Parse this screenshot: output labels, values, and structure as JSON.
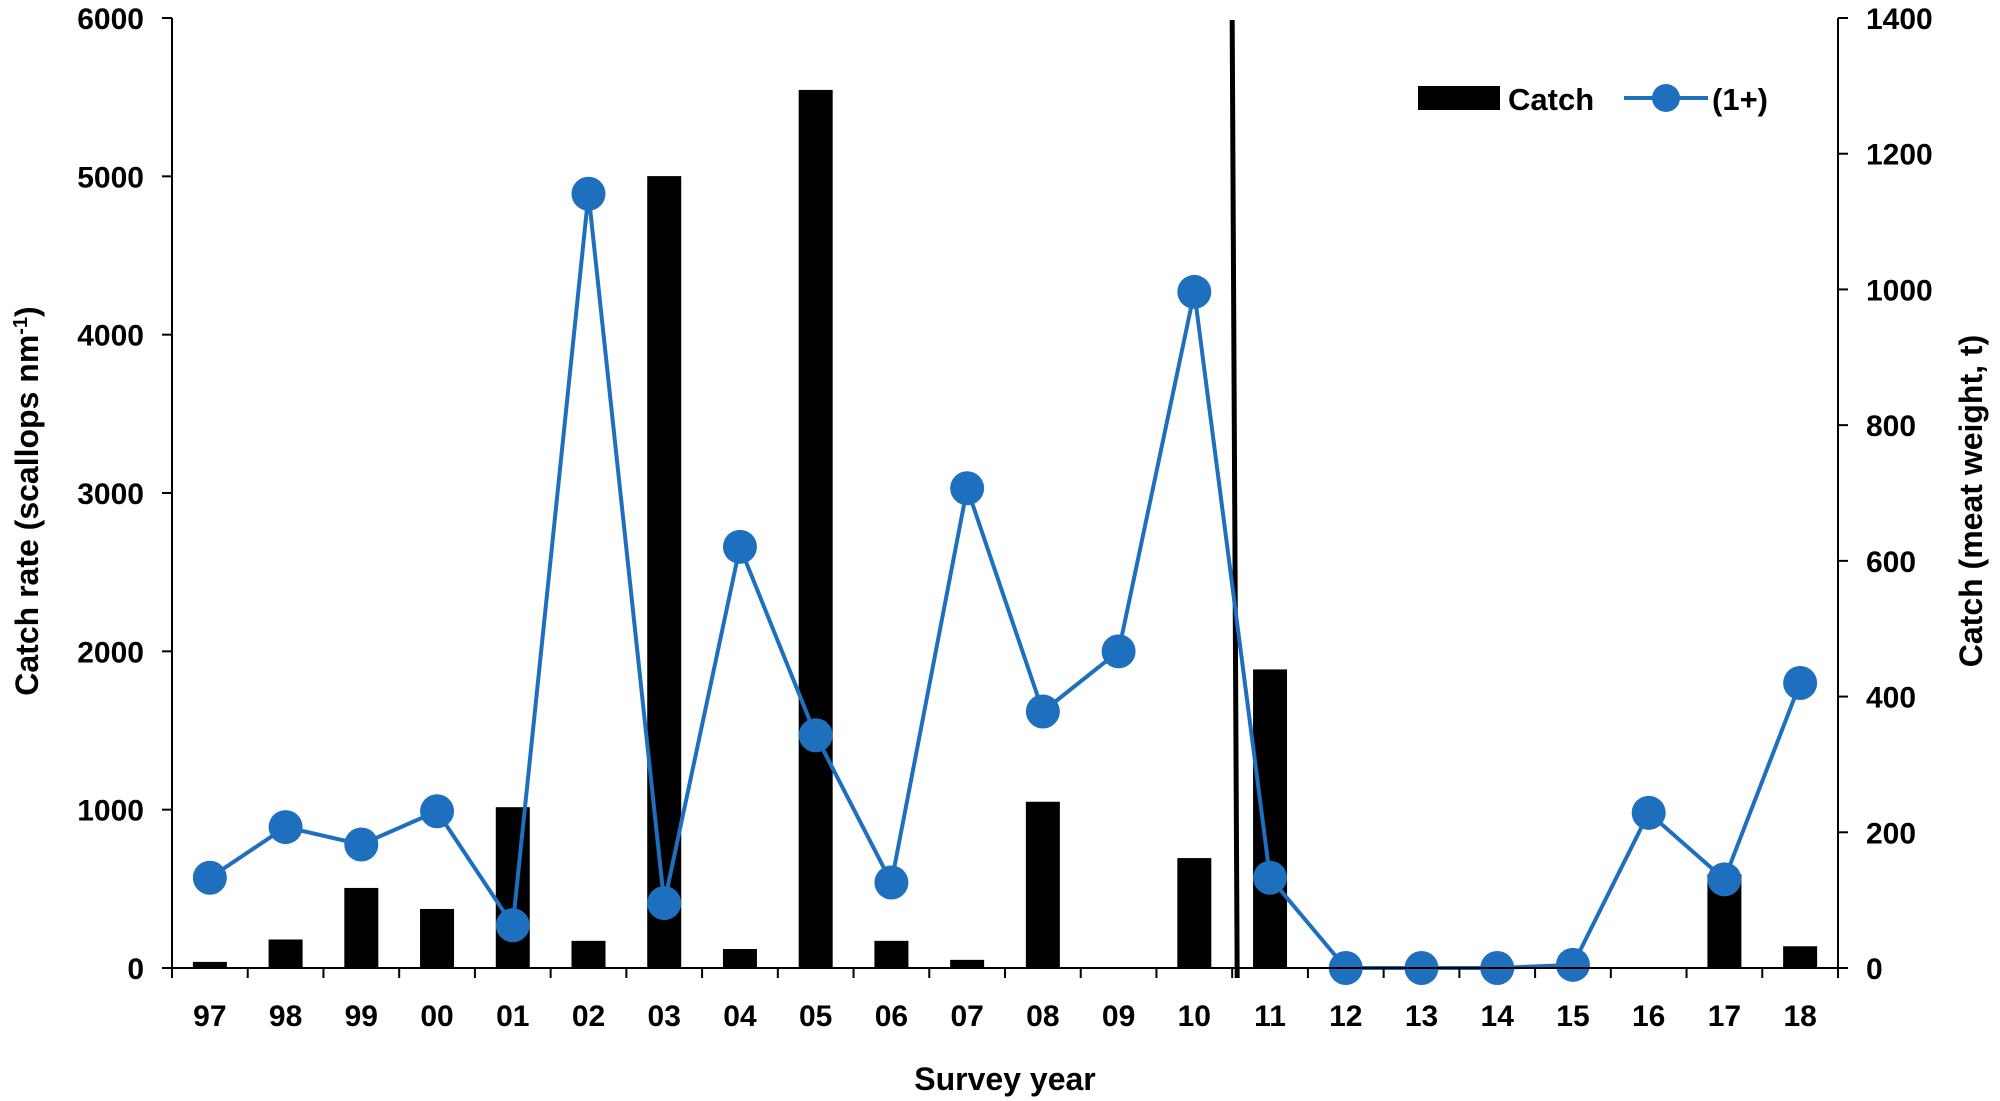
{
  "chart_data": {
    "type": "bar+line",
    "categories": [
      "97",
      "98",
      "99",
      "00",
      "01",
      "02",
      "03",
      "04",
      "05",
      "06",
      "07",
      "08",
      "09",
      "10",
      "11",
      "12",
      "13",
      "14",
      "15",
      "16",
      "17",
      "18"
    ],
    "series": [
      {
        "name": "Catch",
        "type": "bar",
        "axis": "right",
        "values": [
          9,
          42,
          118,
          87,
          237,
          40,
          1167,
          28,
          1294,
          40,
          12,
          245,
          0,
          162,
          440,
          0,
          0,
          0,
          0,
          0,
          138,
          32
        ]
      },
      {
        "name": "(1+)",
        "type": "line",
        "axis": "left",
        "values": [
          570,
          890,
          780,
          990,
          270,
          4890,
          410,
          2660,
          1470,
          540,
          3030,
          1620,
          2000,
          4270,
          570,
          0,
          0,
          0,
          20,
          980,
          560,
          1800
        ]
      }
    ],
    "xlabel": "Survey year",
    "ylabel_left": {
      "main": "Catch rate (scallops nm",
      "sup": "-1",
      "end": ")"
    },
    "ylabel_right": "Catch (meat weight, t)",
    "ylim_left": [
      0,
      6000
    ],
    "ylim_right": [
      0,
      1400
    ],
    "yticks_left": [
      "0",
      "1000",
      "2000",
      "3000",
      "4000",
      "5000",
      "6000"
    ],
    "yticks_right": [
      "0",
      "200",
      "400",
      "600",
      "800",
      "1000",
      "1200",
      "1400"
    ],
    "divider_after_category": "10",
    "legend_position": "top-right",
    "grid": false,
    "colors": {
      "bar": "#000000",
      "line": "#1f6fbf",
      "marker": "#1f6fbf",
      "axis": "#000000"
    }
  }
}
